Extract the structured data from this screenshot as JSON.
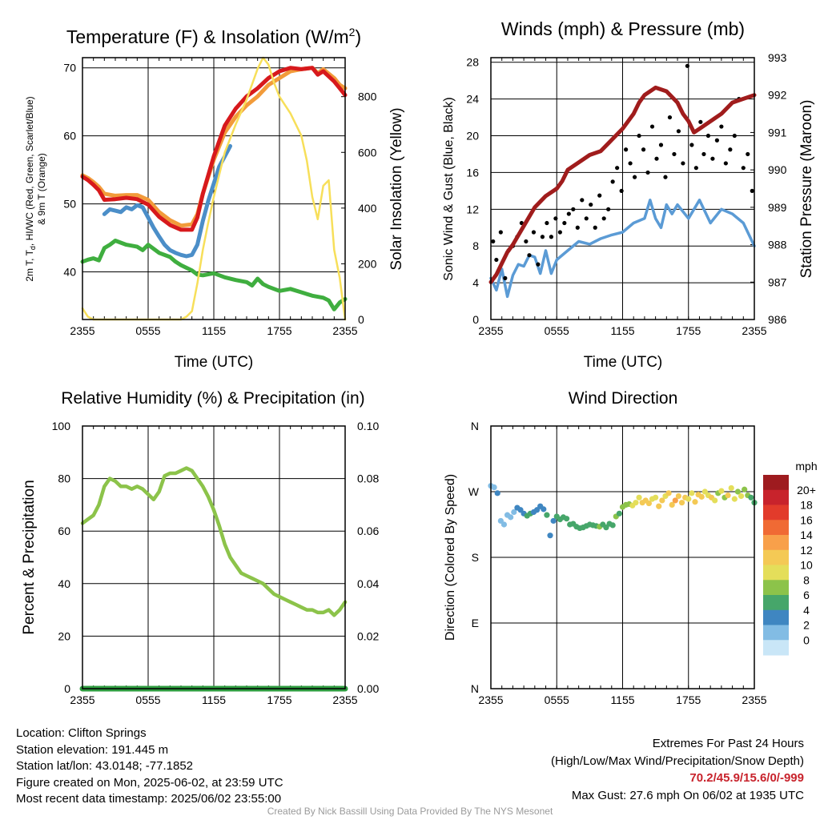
{
  "colors": {
    "temp": "#d7191c",
    "dewpoint": "#4b8ec8",
    "heat_index_wind_chill": "#e8472b",
    "temp_9m": "#f29b3a",
    "dewpoint_green": "#3fae3f",
    "solar": "#f7df5a",
    "wind": "#5b9bd5",
    "gust": "#000000",
    "pressure": "#a01c1c",
    "rh": "#8cc34a",
    "precip": "#2e9c3f"
  },
  "chart_data": [
    {
      "id": "temperature",
      "type": "line",
      "title_main": "Temperature (F) & Insolation (W/m",
      "title_sup": "2",
      "title_end": ")",
      "xlabel": "Time (UTC)",
      "ylabel_lines": [
        "2m T, T",
        "d",
        ", HI/WC (Red, Green, Scarlet/Blue)",
        "& 9m T (Orange)"
      ],
      "y2label": "Solar Insolation (Yellow)",
      "x_ticks": [
        "2355",
        "0555",
        "1155",
        "1755",
        "2355"
      ],
      "xlim": [
        0,
        24
      ],
      "ylim": [
        33,
        71.5
      ],
      "y2lim": [
        0,
        940
      ],
      "y_ticks": [
        40,
        50,
        60,
        70
      ],
      "y2_ticks": [
        0,
        200,
        400,
        600,
        800
      ],
      "series": [
        {
          "key": "temp_9m",
          "x": [
            0,
            0.5,
            1,
            1.5,
            2,
            3,
            4,
            5,
            6,
            7,
            8,
            9,
            10,
            10.5,
            11,
            12,
            13,
            14,
            15,
            16,
            17,
            18,
            19,
            20,
            21,
            21.5,
            22,
            23,
            23.5,
            24
          ],
          "y": [
            54.2,
            53.8,
            53.2,
            52.5,
            51.5,
            51.2,
            51.3,
            51.3,
            50.6,
            48.8,
            47.6,
            46.8,
            47.0,
            48.5,
            51.5,
            56.5,
            60.5,
            62.8,
            64.5,
            65.8,
            67.5,
            68.5,
            69.5,
            69.8,
            70.0,
            69.2,
            69.8,
            68.5,
            67.5,
            67.0
          ]
        },
        {
          "key": "temp",
          "x": [
            0,
            0.5,
            1,
            1.5,
            2,
            3,
            4,
            5,
            6,
            7,
            8,
            9,
            10,
            10.5,
            11,
            12,
            13,
            14,
            15,
            16,
            17,
            18,
            19,
            20,
            21,
            21.5,
            22,
            23,
            23.5,
            24
          ],
          "y": [
            54.0,
            53.5,
            52.8,
            52.0,
            50.6,
            50.7,
            50.9,
            50.7,
            49.9,
            48.1,
            46.9,
            46.2,
            46.2,
            48.0,
            51.5,
            57.0,
            61.5,
            64.0,
            65.8,
            67.0,
            68.5,
            69.5,
            70.0,
            69.8,
            70.0,
            69.0,
            69.5,
            68.0,
            67.0,
            66.0
          ]
        },
        {
          "key": "dewpoint",
          "x": [
            2,
            2.5,
            3,
            3.5,
            4,
            4.5,
            5,
            5.5,
            6,
            6.5,
            7,
            7.5,
            8,
            8.5,
            9,
            9.5,
            10,
            10.5,
            11,
            11.5,
            12,
            12.5,
            13,
            13.5
          ],
          "y": [
            48.5,
            49.2,
            49.0,
            48.8,
            49.5,
            49.2,
            49.8,
            49.5,
            48.0,
            46.5,
            45.2,
            44.0,
            43.2,
            42.8,
            42.5,
            42.3,
            42.5,
            44.0,
            47.5,
            50.5,
            53.0,
            55.5,
            57.0,
            58.5
          ]
        },
        {
          "key": "dewpoint_green",
          "x": [
            0,
            0.5,
            1,
            1.5,
            2,
            2.5,
            3,
            4,
            5,
            5.5,
            6,
            7,
            8,
            8.5,
            9,
            10,
            10.5,
            11,
            12,
            13,
            14,
            15,
            15.5,
            16,
            16.5,
            17,
            18,
            19,
            20,
            21,
            22,
            22.5,
            23,
            23.5,
            24
          ],
          "y": [
            41.5,
            41.8,
            42.0,
            41.7,
            43.5,
            44.0,
            44.6,
            44.0,
            43.7,
            43.2,
            44.0,
            42.8,
            42.2,
            41.5,
            41.0,
            40.2,
            39.6,
            39.5,
            39.8,
            39.2,
            38.8,
            38.5,
            38.0,
            39.0,
            38.2,
            37.8,
            37.2,
            37.5,
            37.0,
            36.5,
            36.2,
            35.8,
            34.5,
            35.5,
            36.0
          ]
        },
        {
          "key": "solar",
          "axis": "y2",
          "x": [
            0,
            0.5,
            1,
            2,
            4,
            6,
            8,
            9,
            9.5,
            10,
            10.5,
            11,
            11.5,
            12,
            12.5,
            13,
            14,
            15,
            16,
            16.5,
            17,
            17.5,
            18,
            19,
            20,
            20.5,
            21,
            21.5,
            22,
            22.5,
            23,
            23.5,
            24
          ],
          "y": [
            40,
            10,
            0,
            0,
            0,
            0,
            0,
            0,
            10,
            30,
            130,
            250,
            350,
            440,
            520,
            600,
            700,
            790,
            900,
            940,
            915,
            850,
            800,
            740,
            660,
            570,
            440,
            360,
            480,
            500,
            250,
            150,
            0
          ]
        }
      ]
    },
    {
      "id": "winds",
      "type": "line",
      "title": "Winds (mph) & Pressure (mb)",
      "xlabel": "Time (UTC)",
      "ylabel": "Sonic Wind & Gust (Blue, Black)",
      "y2label": "Station Pressure (Maroon)",
      "x_ticks": [
        "2355",
        "0555",
        "1155",
        "1755",
        "2355"
      ],
      "xlim": [
        0,
        24
      ],
      "ylim": [
        0,
        28.5
      ],
      "y2lim": [
        986,
        993
      ],
      "y_ticks": [
        0,
        4,
        8,
        12,
        16,
        20,
        24,
        28
      ],
      "y2_ticks": [
        986,
        987,
        988,
        989,
        990,
        991,
        992,
        993
      ],
      "series": [
        {
          "key": "wind",
          "name": "Sonic Wind",
          "x": [
            0,
            0.5,
            1,
            1.5,
            2,
            2.5,
            3,
            3.5,
            4,
            4.5,
            5,
            5.5,
            6,
            7,
            8,
            9,
            10,
            11,
            12,
            13,
            14,
            14.5,
            15,
            15.5,
            16,
            16.5,
            17,
            18,
            19,
            20,
            21,
            22,
            23,
            24
          ],
          "y": [
            4.5,
            3.2,
            5.5,
            2.5,
            4.8,
            6.0,
            5.8,
            7.0,
            6.8,
            5.0,
            7.5,
            5.0,
            6.5,
            7.5,
            8.5,
            8.2,
            8.8,
            9.2,
            9.5,
            10.5,
            11.0,
            13.0,
            11.0,
            10.0,
            12.5,
            11.5,
            12.5,
            11.0,
            13.0,
            10.5,
            12.0,
            11.5,
            10.5,
            8.0
          ]
        },
        {
          "key": "gust",
          "name": "Gust",
          "x": [
            0.2,
            0.5,
            0.9,
            1.3,
            1.6,
            2.0,
            2.4,
            2.8,
            3.2,
            3.5,
            3.9,
            4.3,
            4.7,
            5.1,
            5.5,
            5.9,
            6.3,
            6.7,
            7.1,
            7.5,
            7.9,
            8.3,
            8.7,
            9.1,
            9.5,
            9.9,
            10.3,
            10.7,
            11.1,
            11.5,
            11.9,
            12.3,
            12.7,
            13.1,
            13.5,
            13.9,
            14.3,
            14.7,
            15.1,
            15.5,
            15.9,
            16.3,
            16.7,
            17.1,
            17.5,
            17.9,
            18.3,
            18.7,
            19.1,
            19.4,
            19.8,
            20.2,
            20.6,
            21.0,
            21.4,
            21.8,
            22.2,
            22.6,
            23.0,
            23.4,
            23.8
          ],
          "y": [
            8.5,
            6.5,
            9.5,
            4.5,
            7.5,
            8.0,
            9.0,
            10.5,
            8.5,
            7.0,
            9.5,
            6.0,
            9.0,
            10.5,
            9.0,
            11.0,
            9.5,
            10.5,
            11.5,
            12.0,
            10.0,
            13.0,
            11.0,
            12.5,
            10.0,
            13.5,
            11.0,
            12.0,
            15.0,
            16.5,
            14.0,
            18.5,
            17.0,
            15.5,
            20.0,
            18.5,
            16.0,
            21.0,
            17.5,
            19.0,
            15.5,
            22.0,
            18.0,
            20.5,
            17.0,
            27.6,
            19.0,
            16.5,
            21.5,
            18.0,
            20.0,
            17.5,
            19.5,
            21.0,
            17.0,
            18.5,
            20.0,
            24.0,
            16.5,
            18.0,
            14.0
          ]
        },
        {
          "key": "pressure",
          "axis": "y2",
          "x": [
            0,
            0.5,
            1,
            1.5,
            2,
            3,
            4,
            5,
            6,
            6.5,
            7,
            8,
            9,
            10,
            11,
            12,
            13,
            13.5,
            14,
            15,
            16,
            17,
            17.5,
            18,
            18.5,
            19,
            20,
            21,
            22,
            23,
            24
          ],
          "y": [
            987.0,
            987.2,
            987.5,
            987.8,
            988.0,
            988.5,
            989.0,
            989.3,
            989.5,
            989.7,
            990.0,
            990.2,
            990.4,
            990.5,
            990.8,
            991.1,
            991.5,
            991.8,
            992.0,
            992.2,
            992.1,
            991.8,
            991.5,
            991.3,
            991.0,
            991.1,
            991.3,
            991.5,
            991.8,
            991.9,
            992.0
          ]
        }
      ]
    },
    {
      "id": "humidity",
      "type": "line",
      "title": "Relative Humidity (%) & Precipitation (in)",
      "ylabel": "Percent & Precipitation",
      "x_ticks": [
        "2355",
        "0555",
        "1155",
        "1755",
        "2355"
      ],
      "xlim": [
        0,
        24
      ],
      "ylim": [
        0,
        100
      ],
      "y2lim": [
        0,
        0.1
      ],
      "y_ticks": [
        0,
        20,
        40,
        60,
        80,
        100
      ],
      "y2_ticks": [
        "0.00",
        "0.02",
        "0.04",
        "0.06",
        "0.08",
        "0.10"
      ],
      "series": [
        {
          "key": "rh",
          "name": "Relative Humidity",
          "x": [
            0,
            0.5,
            1,
            1.5,
            2,
            2.5,
            3,
            3.5,
            4,
            4.5,
            5,
            5.5,
            6,
            6.5,
            7,
            7.5,
            8,
            8.5,
            9,
            9.5,
            10,
            10.5,
            11,
            11.5,
            12,
            12.5,
            13,
            13.5,
            14,
            14.5,
            15,
            15.5,
            16,
            16.5,
            17,
            17.5,
            18,
            18.5,
            19,
            19.5,
            20,
            20.5,
            21,
            21.5,
            22,
            22.5,
            23,
            23.5,
            24
          ],
          "y": [
            63,
            64.5,
            66,
            70,
            77,
            80,
            79,
            77,
            77,
            76,
            77,
            76,
            74,
            72,
            75,
            81,
            82,
            82,
            83,
            84,
            83,
            80,
            77,
            73,
            68,
            62,
            55,
            50,
            47,
            44,
            43,
            42,
            41,
            40,
            38,
            36,
            35,
            34,
            33,
            32,
            31,
            30,
            30,
            29,
            29,
            30,
            28,
            30,
            33
          ]
        },
        {
          "key": "precip",
          "name": "Precipitation",
          "x": [
            0,
            24
          ],
          "y": [
            0,
            0
          ]
        }
      ]
    },
    {
      "id": "direction",
      "type": "scatter",
      "title": "Wind Direction",
      "ylabel": "Direction (Colored By Speed)",
      "x_ticks": [
        "2355",
        "0555",
        "1155",
        "1755",
        "2355"
      ],
      "y_tick_labels": [
        "N",
        "E",
        "S",
        "W",
        "N"
      ],
      "xlim": [
        0,
        24
      ],
      "ylim": [
        0,
        360
      ],
      "colorbar": {
        "title": "mph",
        "labels": [
          "20+",
          "18",
          "16",
          "14",
          "12",
          "10",
          "8",
          "6",
          "4",
          "2",
          "0"
        ],
        "colors": [
          "#9e1b1f",
          "#c8232c",
          "#e23b2b",
          "#f06a34",
          "#f8a04a",
          "#f4c955",
          "#e4de5a",
          "#8cc34a",
          "#46a66a",
          "#3f86c1",
          "#82bce4",
          "#c9e6f7"
        ]
      },
      "x": [
        0,
        0.3,
        0.6,
        0.9,
        1.2,
        1.5,
        1.8,
        2.1,
        2.4,
        2.7,
        3.0,
        3.3,
        3.6,
        3.9,
        4.2,
        4.5,
        4.8,
        5.1,
        5.4,
        5.7,
        6.0,
        6.3,
        6.6,
        6.9,
        7.2,
        7.5,
        7.8,
        8.1,
        8.4,
        8.7,
        9.0,
        9.3,
        9.6,
        9.9,
        10.2,
        10.5,
        10.8,
        11.1,
        11.4,
        11.7,
        12.0,
        12.3,
        12.6,
        12.9,
        13.2,
        13.5,
        13.8,
        14.1,
        14.4,
        14.7,
        15.0,
        15.3,
        15.6,
        15.9,
        16.2,
        16.5,
        16.8,
        17.1,
        17.4,
        17.7,
        18.0,
        18.3,
        18.6,
        18.9,
        19.2,
        19.5,
        19.8,
        20.1,
        20.4,
        20.7,
        21.0,
        21.3,
        21.6,
        21.9,
        22.2,
        22.5,
        22.8,
        23.1,
        23.4,
        23.7,
        24.0
      ],
      "y": [
        278,
        276,
        268,
        230,
        225,
        238,
        235,
        242,
        248,
        245,
        240,
        237,
        240,
        242,
        245,
        250,
        246,
        238,
        210,
        230,
        236,
        232,
        235,
        233,
        225,
        226,
        222,
        220,
        221,
        223,
        225,
        224,
        223,
        222,
        225,
        221,
        226,
        224,
        236,
        240,
        249,
        252,
        253,
        251,
        255,
        262,
        255,
        258,
        254,
        260,
        262,
        250,
        258,
        264,
        268,
        252,
        258,
        264,
        255,
        262,
        260,
        268,
        256,
        266,
        263,
        270,
        265,
        262,
        258,
        268,
        271,
        262,
        265,
        275,
        260,
        270,
        264,
        273,
        265,
        262,
        255
      ],
      "speed": [
        3,
        3,
        4,
        3,
        3,
        2,
        3,
        3,
        4,
        5,
        5,
        6,
        6,
        4,
        4,
        5,
        5,
        6,
        4,
        4,
        6,
        6,
        6,
        7,
        6,
        6,
        7,
        7,
        7,
        6,
        6,
        7,
        7,
        8,
        7,
        6,
        6,
        7,
        8,
        7,
        8,
        9,
        9,
        10,
        10,
        11,
        12,
        13,
        12,
        11,
        10,
        12,
        13,
        11,
        13,
        12,
        14,
        12,
        13,
        12,
        10,
        11,
        12,
        13,
        12,
        11,
        10,
        12,
        11,
        9,
        10,
        8,
        12,
        11,
        10,
        9,
        10,
        9,
        8,
        7,
        6
      ]
    }
  ],
  "footer": {
    "location": "Location: Clifton Springs",
    "elevation": "Station elevation: 191.445 m",
    "latlon": "Station lat/lon: 43.0148; -77.1852",
    "created": "Figure created on Mon, 2025-06-02, at 23:59 UTC",
    "recent": "Most recent data timestamp: 2025/06/02 23:55:00",
    "extremes_title": "Extremes For Past 24 Hours",
    "extremes_desc": "(High/Low/Max Wind/Precipitation/Snow Depth)",
    "extremes_values": "70.2/45.9/15.6/0/-999",
    "max_gust": "Max Gust: 27.6 mph On 06/02 at 1935 UTC",
    "credit": "Created By Nick Bassill Using Data Provided By The NYS Mesonet"
  }
}
